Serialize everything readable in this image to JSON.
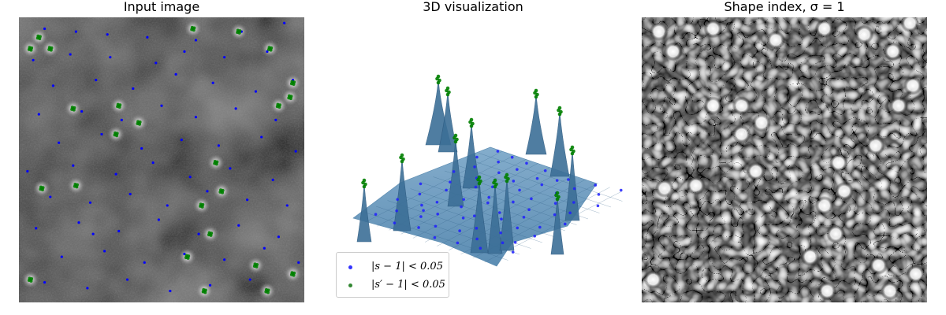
{
  "chart_data": [
    {
      "type": "scatter",
      "title": "Input image",
      "background": "grayscale-noise-image",
      "series": [
        {
          "name": "",
          "color": "#0000ff",
          "points": [
            [
              0.09,
              0.04
            ],
            [
              0.2,
              0.05
            ],
            [
              0.31,
              0.06
            ],
            [
              0.45,
              0.07
            ],
            [
              0.62,
              0.08
            ],
            [
              0.78,
              0.05
            ],
            [
              0.93,
              0.02
            ],
            [
              0.05,
              0.15
            ],
            [
              0.18,
              0.13
            ],
            [
              0.32,
              0.14
            ],
            [
              0.48,
              0.16
            ],
            [
              0.58,
              0.12
            ],
            [
              0.72,
              0.14
            ],
            [
              0.87,
              0.12
            ],
            [
              0.12,
              0.24
            ],
            [
              0.27,
              0.22
            ],
            [
              0.4,
              0.25
            ],
            [
              0.55,
              0.2
            ],
            [
              0.68,
              0.23
            ],
            [
              0.83,
              0.26
            ],
            [
              0.96,
              0.22
            ],
            [
              0.07,
              0.34
            ],
            [
              0.22,
              0.33
            ],
            [
              0.36,
              0.36
            ],
            [
              0.5,
              0.31
            ],
            [
              0.62,
              0.35
            ],
            [
              0.76,
              0.32
            ],
            [
              0.9,
              0.36
            ],
            [
              0.14,
              0.44
            ],
            [
              0.29,
              0.41
            ],
            [
              0.43,
              0.46
            ],
            [
              0.57,
              0.43
            ],
            [
              0.7,
              0.45
            ],
            [
              0.85,
              0.42
            ],
            [
              0.97,
              0.47
            ],
            [
              0.03,
              0.54
            ],
            [
              0.19,
              0.52
            ],
            [
              0.34,
              0.55
            ],
            [
              0.47,
              0.51
            ],
            [
              0.6,
              0.56
            ],
            [
              0.74,
              0.53
            ],
            [
              0.89,
              0.57
            ],
            [
              0.11,
              0.63
            ],
            [
              0.25,
              0.65
            ],
            [
              0.39,
              0.62
            ],
            [
              0.52,
              0.66
            ],
            [
              0.66,
              0.61
            ],
            [
              0.8,
              0.64
            ],
            [
              0.94,
              0.66
            ],
            [
              0.06,
              0.74
            ],
            [
              0.21,
              0.72
            ],
            [
              0.35,
              0.75
            ],
            [
              0.49,
              0.71
            ],
            [
              0.63,
              0.76
            ],
            [
              0.77,
              0.73
            ],
            [
              0.91,
              0.77
            ],
            [
              0.15,
              0.84
            ],
            [
              0.3,
              0.82
            ],
            [
              0.44,
              0.86
            ],
            [
              0.58,
              0.83
            ],
            [
              0.72,
              0.85
            ],
            [
              0.86,
              0.81
            ],
            [
              0.98,
              0.86
            ],
            [
              0.09,
              0.93
            ],
            [
              0.24,
              0.95
            ],
            [
              0.38,
              0.92
            ],
            [
              0.53,
              0.96
            ],
            [
              0.67,
              0.94
            ],
            [
              0.81,
              0.92
            ],
            [
              0.26,
              0.76
            ]
          ]
        },
        {
          "name": "",
          "color": "#008000",
          "points": [
            [
              0.07,
              0.07
            ],
            [
              0.04,
              0.11
            ],
            [
              0.11,
              0.11
            ],
            [
              0.61,
              0.04
            ],
            [
              0.77,
              0.05
            ],
            [
              0.88,
              0.11
            ],
            [
              0.96,
              0.23
            ],
            [
              0.95,
              0.28
            ],
            [
              0.35,
              0.31
            ],
            [
              0.42,
              0.37
            ],
            [
              0.34,
              0.41
            ],
            [
              0.19,
              0.32
            ],
            [
              0.91,
              0.31
            ],
            [
              0.69,
              0.51
            ],
            [
              0.08,
              0.6
            ],
            [
              0.2,
              0.59
            ],
            [
              0.71,
              0.61
            ],
            [
              0.64,
              0.66
            ],
            [
              0.67,
              0.76
            ],
            [
              0.59,
              0.84
            ],
            [
              0.83,
              0.87
            ],
            [
              0.96,
              0.9
            ],
            [
              0.04,
              0.92
            ],
            [
              0.65,
              0.96
            ],
            [
              0.87,
              0.96
            ]
          ]
        }
      ]
    },
    {
      "type": "surface3d",
      "title": "3D visualization",
      "legend": {
        "placement": "lower-left",
        "entries": [
          {
            "label": "|s − 1| < 0.05",
            "color": "#0000ff"
          },
          {
            "label": "|s′ − 1| < 0.05",
            "color": "#008000"
          }
        ]
      },
      "surface_color": "#4a7fa8",
      "peaks": [
        [
          0.38,
          0.1
        ],
        [
          0.43,
          0.19
        ],
        [
          0.65,
          0.17
        ],
        [
          0.79,
          0.23
        ],
        [
          0.88,
          0.32
        ],
        [
          0.52,
          0.3
        ],
        [
          0.59,
          0.33
        ],
        [
          0.29,
          0.49
        ],
        [
          0.12,
          0.54
        ],
        [
          0.5,
          0.43
        ],
        [
          0.63,
          0.5
        ],
        [
          0.67,
          0.44
        ],
        [
          0.76,
          0.53
        ]
      ]
    },
    {
      "type": "heatmap",
      "title": "Shape index, σ = 1",
      "colormap": "gray",
      "blobs": [
        [
          0.06,
          0.05
        ],
        [
          0.11,
          0.12
        ],
        [
          0.25,
          0.04
        ],
        [
          0.47,
          0.08
        ],
        [
          0.64,
          0.04
        ],
        [
          0.78,
          0.06
        ],
        [
          0.94,
          0.02
        ],
        [
          0.88,
          0.12
        ],
        [
          0.95,
          0.24
        ],
        [
          0.25,
          0.31
        ],
        [
          0.35,
          0.31
        ],
        [
          0.42,
          0.37
        ],
        [
          0.35,
          0.41
        ],
        [
          0.9,
          0.31
        ],
        [
          0.08,
          0.6
        ],
        [
          0.19,
          0.59
        ],
        [
          0.69,
          0.51
        ],
        [
          0.71,
          0.61
        ],
        [
          0.64,
          0.66
        ],
        [
          0.68,
          0.76
        ],
        [
          0.59,
          0.84
        ],
        [
          0.83,
          0.87
        ],
        [
          0.96,
          0.9
        ],
        [
          0.04,
          0.92
        ],
        [
          0.65,
          0.96
        ],
        [
          0.87,
          0.96
        ],
        [
          0.4,
          0.54
        ],
        [
          0.82,
          0.45
        ]
      ]
    }
  ]
}
